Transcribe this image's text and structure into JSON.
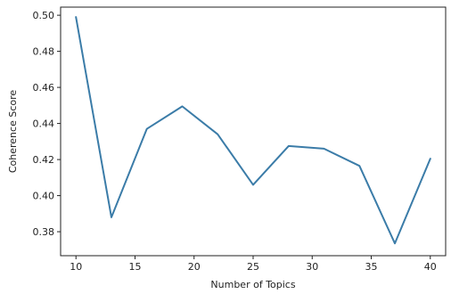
{
  "chart_data": {
    "type": "line",
    "title": "",
    "xlabel": "Number of Topics",
    "ylabel": "Coherence Score",
    "xlim": [
      8.7,
      41.3
    ],
    "ylim": [
      0.3667,
      0.5045
    ],
    "xticks": [
      10,
      15,
      20,
      25,
      30,
      35,
      40
    ],
    "xtick_labels": [
      "10",
      "15",
      "20",
      "25",
      "30",
      "35",
      "40"
    ],
    "yticks": [
      0.38,
      0.4,
      0.42,
      0.44,
      0.46,
      0.48,
      0.5
    ],
    "ytick_labels": [
      "0.38",
      "0.40",
      "0.42",
      "0.44",
      "0.46",
      "0.48",
      "0.50"
    ],
    "grid": false,
    "legend": false,
    "series": [
      {
        "color": "#3b7ca8",
        "x": [
          10,
          13,
          16,
          19,
          22,
          25,
          28,
          31,
          34,
          37,
          40
        ],
        "y": [
          0.499,
          0.388,
          0.437,
          0.4495,
          0.434,
          0.406,
          0.4275,
          0.426,
          0.4165,
          0.3735,
          0.4205
        ]
      }
    ]
  }
}
